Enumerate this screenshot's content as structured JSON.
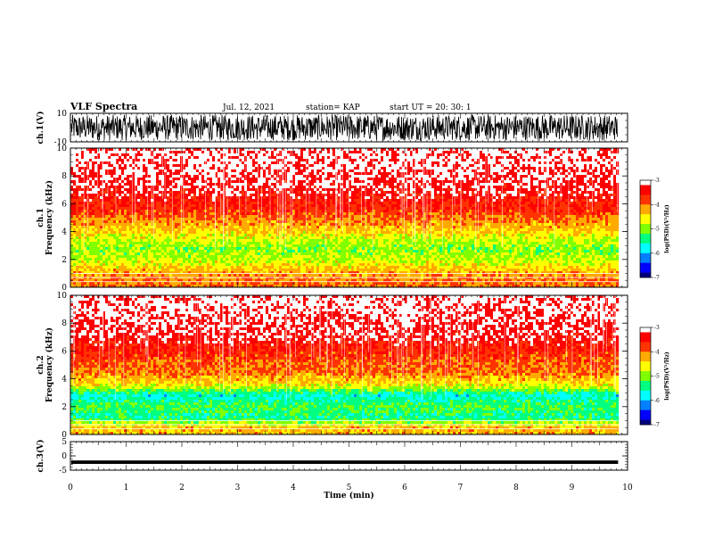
{
  "header": {
    "title": "VLF Spectra",
    "date": "Jul. 12, 2021",
    "station": "station= KAP",
    "start": "start UT =  20: 30: 1"
  },
  "chart_data": [
    {
      "type": "line",
      "name": "ch1-waveform",
      "ylabel": "ch.1(V)",
      "ylim": [
        -10,
        10
      ],
      "yticks": [
        "10",
        "-10"
      ],
      "xlim": [
        0,
        10
      ],
      "description_values": "dense noisy waveform spanning about -9 V to +9 V over 0–9.83 min",
      "data_end_min": 9.83
    },
    {
      "type": "heatmap",
      "name": "ch1-spectrogram",
      "ylabel_top": "ch.1",
      "ylabel": "Frequency (kHz)",
      "ylim": [
        0,
        10
      ],
      "yticks": [
        "0",
        "2",
        "4",
        "6",
        "8",
        "10"
      ],
      "xlim": [
        0,
        10
      ],
      "data_end_min": 9.83,
      "log_psd_profile": [
        {
          "f_khz": 0.5,
          "log_psd": -4.0
        },
        {
          "f_khz": 1.2,
          "log_psd": -4.3
        },
        {
          "f_khz": 2.0,
          "log_psd": -4.8
        },
        {
          "f_khz": 2.8,
          "log_psd": -5.0
        },
        {
          "f_khz": 3.5,
          "log_psd": -4.7
        },
        {
          "f_khz": 4.5,
          "log_psd": -4.2
        },
        {
          "f_khz": 5.5,
          "log_psd": -3.7
        },
        {
          "f_khz": 7.0,
          "log_psd": -3.3
        },
        {
          "f_khz": 9.5,
          "log_psd": -3.1
        }
      ]
    },
    {
      "type": "heatmap",
      "name": "ch2-spectrogram",
      "ylabel_top": "ch.2",
      "ylabel": "Frequency (kHz)",
      "ylim": [
        0,
        10
      ],
      "yticks": [
        "0",
        "2",
        "4",
        "6",
        "8",
        "10"
      ],
      "xlim": [
        0,
        10
      ],
      "data_end_min": 9.83,
      "log_psd_profile": [
        {
          "f_khz": 0.5,
          "log_psd": -4.3
        },
        {
          "f_khz": 1.2,
          "log_psd": -5.5
        },
        {
          "f_khz": 2.0,
          "log_psd": -5.2
        },
        {
          "f_khz": 2.8,
          "log_psd": -5.7
        },
        {
          "f_khz": 3.5,
          "log_psd": -4.6
        },
        {
          "f_khz": 4.5,
          "log_psd": -4.0
        },
        {
          "f_khz": 5.5,
          "log_psd": -3.8
        },
        {
          "f_khz": 7.0,
          "log_psd": -3.3
        },
        {
          "f_khz": 9.5,
          "log_psd": -3.1
        }
      ]
    },
    {
      "type": "line",
      "name": "ch3-waveform",
      "ylabel": "ch.3(V)",
      "ylim": [
        -5,
        5
      ],
      "yticks": [
        "5",
        "0",
        "-5"
      ],
      "xlim": [
        0,
        10
      ],
      "approx_level": -2.2,
      "approx_amplitude": 0.6,
      "data_end_min": 9.83
    }
  ],
  "colorbar": {
    "label": "log(PSD)(V²/Hz)",
    "ticks": [
      "-3",
      "-4",
      "-5",
      "-6",
      "-7"
    ],
    "range": [
      -7,
      -3
    ],
    "colors": [
      "#00007f",
      "#0000ff",
      "#0080ff",
      "#00ffff",
      "#00ff80",
      "#80ff00",
      "#ffff00",
      "#ffaa00",
      "#ff3300",
      "#ff0000",
      "#ffffff"
    ]
  },
  "xaxis": {
    "label": "Time (min)",
    "ticks": [
      "0",
      "1",
      "2",
      "3",
      "4",
      "5",
      "6",
      "7",
      "8",
      "9",
      "10"
    ],
    "range": [
      0,
      10
    ]
  }
}
